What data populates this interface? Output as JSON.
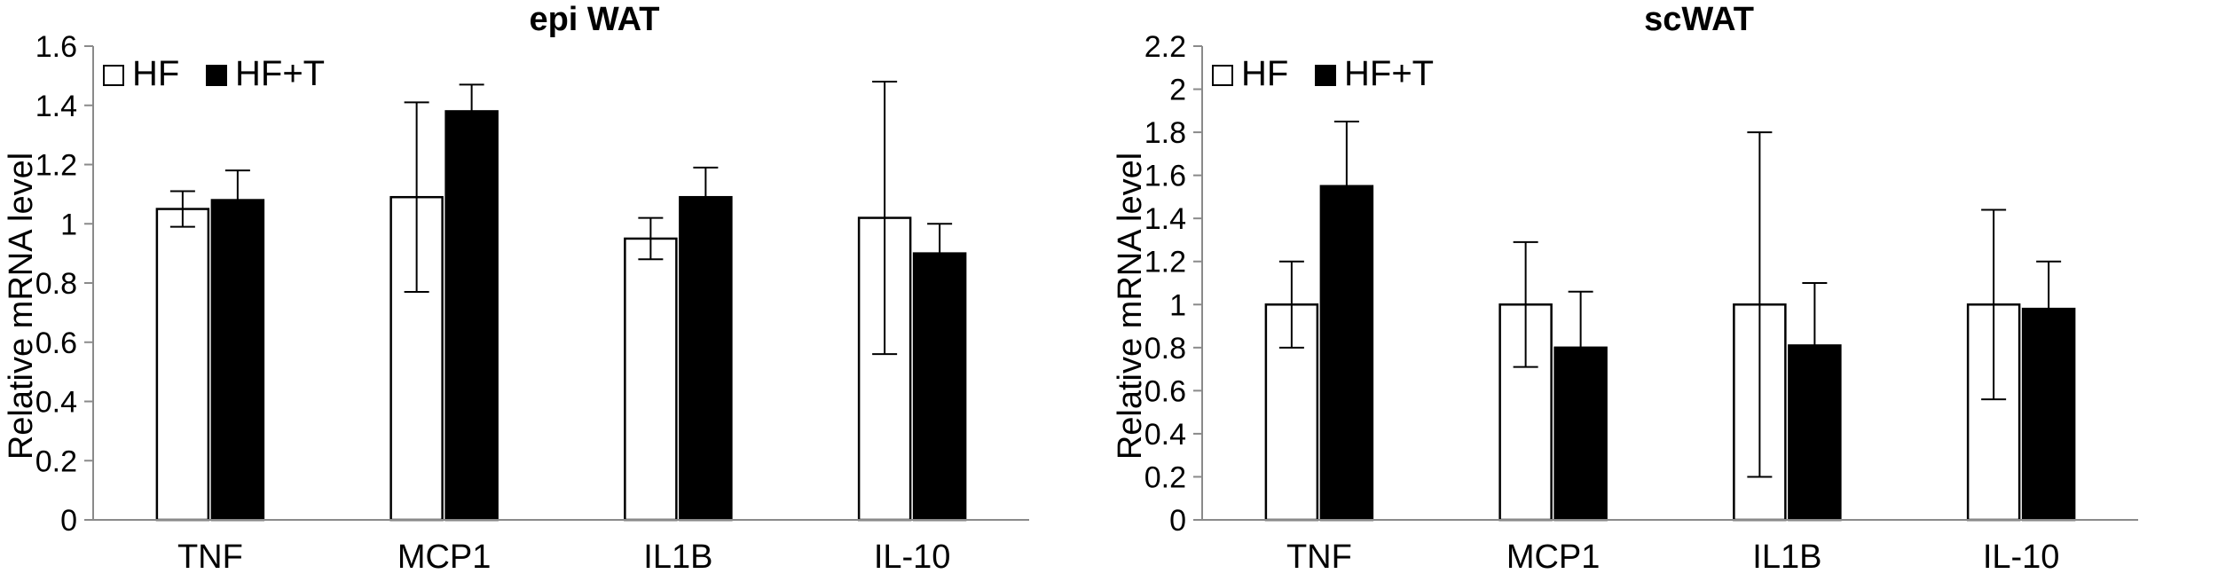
{
  "chart_data": [
    {
      "type": "bar",
      "title": "epi WAT",
      "ylabel": "Relative mRNA level",
      "xlabel": "",
      "ylim": [
        0,
        1.6
      ],
      "yticks": [
        "0",
        "0.2",
        "0.4",
        "0.6",
        "0.8",
        "1",
        "1.2",
        "1.4",
        "1.6"
      ],
      "categories": [
        "TNF",
        "MCP1",
        "IL1B",
        "IL-10"
      ],
      "legend_position": "top-left",
      "grid": false,
      "series": [
        {
          "name": "HF",
          "fill": "#ffffff",
          "values": [
            1.05,
            1.09,
            0.95,
            1.02
          ],
          "errors": [
            0.06,
            0.32,
            0.07,
            0.46
          ]
        },
        {
          "name": "HF+T",
          "fill": "#000000",
          "values": [
            1.08,
            1.38,
            1.09,
            0.9
          ],
          "errors": [
            0.1,
            0.09,
            0.1,
            0.1
          ]
        }
      ]
    },
    {
      "type": "bar",
      "title": "scWAT",
      "ylabel": "Relative mRNA level",
      "xlabel": "",
      "ylim": [
        0,
        2.2
      ],
      "yticks": [
        "0",
        "0.2",
        "0.4",
        "0.6",
        "0.8",
        "1",
        "1.2",
        "1.4",
        "1.6",
        "1.8",
        "2",
        "2.2"
      ],
      "categories": [
        "TNF",
        "MCP1",
        "IL1B",
        "IL-10"
      ],
      "legend_position": "top-left",
      "grid": false,
      "series": [
        {
          "name": "HF",
          "fill": "#ffffff",
          "values": [
            1.0,
            1.0,
            1.0,
            1.0
          ],
          "errors": [
            0.2,
            0.29,
            0.8,
            0.44
          ]
        },
        {
          "name": "HF+T",
          "fill": "#000000",
          "values": [
            1.55,
            0.8,
            0.81,
            0.98
          ],
          "errors": [
            0.3,
            0.26,
            0.29,
            0.22
          ]
        }
      ]
    }
  ]
}
